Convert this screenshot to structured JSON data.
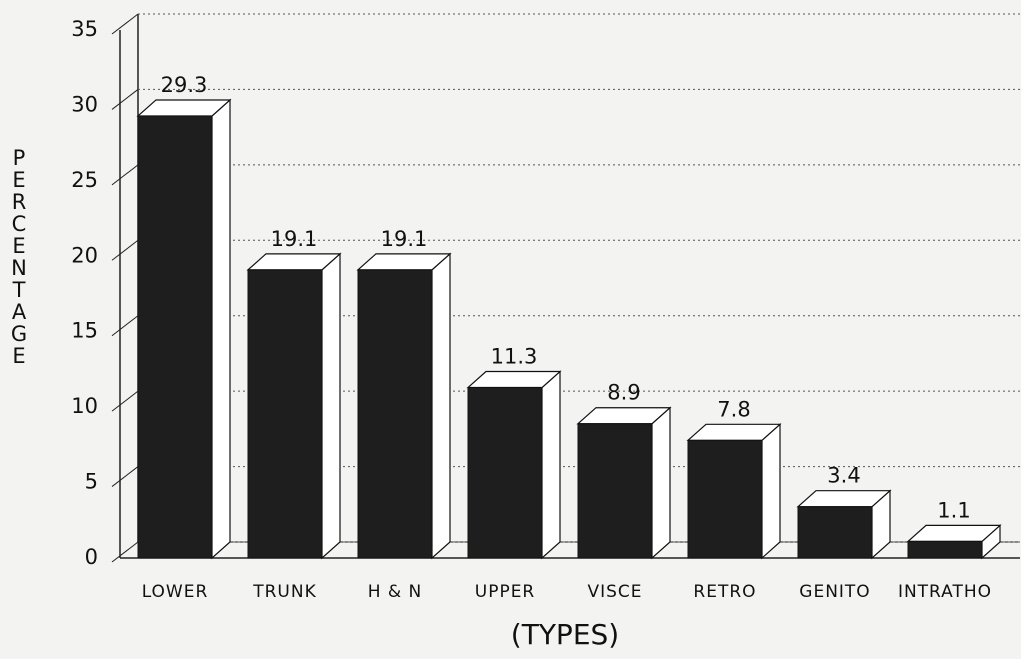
{
  "chart_data": {
    "type": "bar3d",
    "categories": [
      "LOWER",
      "TRUNK",
      "H & N",
      "UPPER",
      "VISCE",
      "RETRO",
      "GENITO",
      "INTRATHO"
    ],
    "values": [
      29.3,
      19.1,
      19.1,
      11.3,
      8.9,
      7.8,
      3.4,
      1.1
    ],
    "color": "#1e1e1e",
    "ylabel": "PERCENTAGE",
    "xlabel": "(TYPES)",
    "ylim": [
      0,
      35
    ],
    "yticks": [
      0,
      5,
      10,
      15,
      20,
      25,
      30,
      35
    ],
    "grid": true
  }
}
